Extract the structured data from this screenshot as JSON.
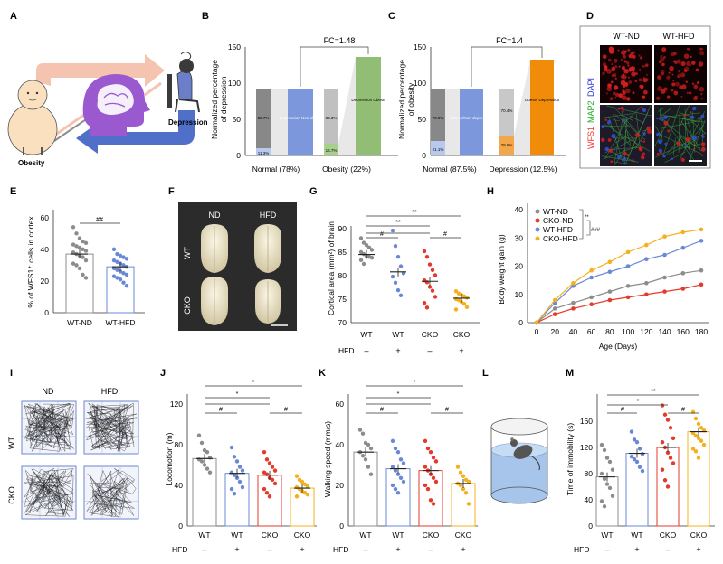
{
  "panels": {
    "A": {
      "letter": "A",
      "obesity": "Obesity",
      "depression": "Depression"
    },
    "B": {
      "letter": "B",
      "fc": "FC=1.48",
      "ylabel1": "Normalized percentage",
      "ylabel2": "of depression",
      "yticks": [
        "0",
        "50",
        "100",
        "150"
      ],
      "x1": "Normal (78%)",
      "x2": "Obesity (22%)",
      "bar1": {
        "top": "88.7%",
        "bottom": "11.3%"
      },
      "bar2": "Depression Non-obese",
      "bar3": {
        "top": "83.3%",
        "bottom": "16.7%"
      },
      "bar4": "Depression Obese"
    },
    "C": {
      "letter": "C",
      "fc": "FC=1.4",
      "ylabel1": "Normalized percentage",
      "ylabel2": "of obesity",
      "yticks": [
        "0",
        "50",
        "100",
        "150"
      ],
      "x1": "Normal (87.5%)",
      "x2": "Depression (12.5%)",
      "bar1": {
        "top": "78.9%",
        "bottom": "21.1%"
      },
      "bar2": "Obese/Non-depression",
      "bar3": {
        "top": "70.4%",
        "bottom": "29.6%"
      },
      "bar4": "Obese/ Depression"
    },
    "D": {
      "letter": "D",
      "c1": "WT-ND",
      "c2": "WT-HFD",
      "side_wfs1": "WFS1",
      "side_map2": "MAP2",
      "side_dapi": "DAPI"
    },
    "E": {
      "letter": "E",
      "ylabel": "% of WFS1⁺ cells in cortex",
      "yticks": [
        "0",
        "20",
        "40",
        "60"
      ],
      "xlabels": [
        "WT-ND",
        "WT-HFD"
      ],
      "sig": "##"
    },
    "F": {
      "letter": "F",
      "nd": "ND",
      "hfd": "HFD",
      "wt": "WT",
      "cko": "CKO"
    },
    "G": {
      "letter": "G",
      "ylabel": "Cortical area (mm²) of brain",
      "yticks": [
        "70",
        "75",
        "80",
        "85",
        "90"
      ],
      "xlabels": [
        "WT",
        "WT",
        "CKO",
        "CKO"
      ],
      "hfd": "HFD",
      "signs": [
        "–",
        "+",
        "–",
        "+"
      ],
      "sig1": "#",
      "sig2": "**",
      "sig3": "**",
      "sig4": "#"
    },
    "H": {
      "letter": "H",
      "ylabel": "Body weight gain (g)",
      "xlabel": "Age (Days)",
      "legend": [
        "WT-ND",
        "CKO-ND",
        "WT-HFD",
        "CKO-HFD"
      ],
      "sig": "**",
      "sig2": "###"
    },
    "I": {
      "letter": "I",
      "nd": "ND",
      "hfd": "HFD",
      "wt": "WT",
      "cko": "CKO"
    },
    "J": {
      "letter": "J",
      "ylabel": "Locomotion (m)",
      "yticks": [
        "0",
        "40",
        "80",
        "120"
      ],
      "xlabels": [
        "WT",
        "WT",
        "CKO",
        "CKO"
      ],
      "hfd": "HFD",
      "signs": [
        "–",
        "+",
        "–",
        "+"
      ],
      "sig1": "#",
      "sig2": "*",
      "sig3": "*",
      "sig4": "#"
    },
    "K": {
      "letter": "K",
      "ylabel": "Walking speed (mm/s)",
      "yticks": [
        "0",
        "20",
        "40",
        "60"
      ],
      "xlabels": [
        "WT",
        "WT",
        "CKO",
        "CKO"
      ],
      "hfd": "HFD",
      "signs": [
        "–",
        "+",
        "–",
        "+"
      ],
      "sig1": "#",
      "sig2": "*",
      "sig3": "*",
      "sig4": "#"
    },
    "L": {
      "letter": "L"
    },
    "M": {
      "letter": "M",
      "ylabel": "Time of immobility (s)",
      "yticks": [
        "0",
        "40",
        "80",
        "120",
        "160"
      ],
      "xlabels": [
        "WT",
        "WT",
        "CKO",
        "CKO"
      ],
      "hfd": "HFD",
      "signs": [
        "–",
        "+",
        "–",
        "+"
      ],
      "sig1": "#",
      "sig2": "*",
      "sig3": "**",
      "sig4": "#"
    }
  },
  "colors": {
    "wtnd": "#8c8c8c",
    "wthfd": "#6a88d6",
    "ckond": "#e43a2b",
    "ckohfd": "#f4b11e",
    "dep_nonobese": "#6f8fd3",
    "dep_obese": "#8dbb6e",
    "obese_dep": "#f08c0a"
  },
  "chart_data": [
    {
      "panel": "E",
      "type": "scatter",
      "categories": [
        "WT-ND",
        "WT-HFD"
      ],
      "means": [
        37,
        29
      ],
      "points": [
        [
          54,
          50,
          47,
          45,
          44,
          43,
          42,
          41,
          40,
          39,
          38,
          37,
          36,
          35,
          33,
          31,
          30,
          28,
          24,
          22
        ],
        [
          40,
          37,
          36,
          35,
          34,
          33,
          32,
          31,
          30,
          29,
          28,
          27,
          26,
          25,
          24,
          23,
          22,
          21,
          19,
          17
        ]
      ],
      "ylim": [
        0,
        65
      ]
    },
    {
      "panel": "G",
      "type": "scatter",
      "categories": [
        "WT",
        "WT",
        "CKO",
        "CKO"
      ],
      "means": [
        84.5,
        80.8,
        78.8,
        75.2
      ],
      "points": [
        [
          88,
          87,
          86.5,
          86,
          85.5,
          85,
          84.6,
          84.2,
          84,
          83.8,
          83.3,
          82.5
        ],
        [
          89.6,
          86.3,
          84,
          82,
          80.5,
          79.8,
          78.5,
          76.9,
          75.8
        ],
        [
          85.2,
          84,
          82.4,
          81.2,
          80.1,
          79,
          78.6,
          77.6,
          76.8,
          75.5,
          74.2,
          73.2
        ],
        [
          76.7,
          76.2,
          75.9,
          75.6,
          75.3,
          75,
          74.8,
          74.4,
          74,
          73.3,
          72.8
        ]
      ],
      "ylim": [
        70,
        90
      ]
    },
    {
      "panel": "H",
      "type": "line",
      "x": [
        0,
        20,
        40,
        60,
        80,
        100,
        120,
        140,
        160,
        180
      ],
      "series": [
        {
          "name": "WT-ND",
          "values": [
            0,
            5,
            7,
            9,
            11,
            13,
            14,
            16,
            17.5,
            18.5
          ]
        },
        {
          "name": "CKO-ND",
          "values": [
            0,
            3,
            5,
            6.5,
            8,
            9,
            10,
            11,
            12,
            13.5
          ]
        },
        {
          "name": "WT-HFD",
          "values": [
            0,
            7,
            13,
            16,
            18,
            20,
            22.5,
            24,
            26.5,
            29
          ]
        },
        {
          "name": "CKO-HFD",
          "values": [
            0,
            8,
            14,
            18.5,
            21.5,
            25,
            27.5,
            30.5,
            32,
            33
          ]
        }
      ],
      "ylim": [
        0,
        40
      ]
    },
    {
      "panel": "J",
      "type": "bar",
      "categories": [
        "WT",
        "WT",
        "CKO",
        "CKO"
      ],
      "values": [
        73,
        57,
        55,
        41
      ],
      "points": [
        [
          98,
          90,
          82,
          80,
          74,
          72,
          70,
          66,
          62,
          58
        ],
        [
          85,
          75,
          70,
          64,
          60,
          58,
          55,
          52,
          48,
          42,
          40,
          35
        ],
        [
          80,
          72,
          68,
          64,
          60,
          58,
          56,
          52,
          50,
          46,
          40,
          36,
          32
        ],
        [
          54,
          50,
          48,
          45,
          43,
          42,
          40,
          38,
          36,
          34,
          32
        ]
      ],
      "ylim": [
        0,
        130
      ]
    },
    {
      "panel": "K",
      "type": "bar",
      "categories": [
        "WT",
        "WT",
        "CKO",
        "CKO"
      ],
      "values": [
        40,
        31,
        30,
        23
      ],
      "points": [
        [
          52,
          50,
          45,
          44,
          42,
          40,
          38,
          36,
          32,
          28
        ],
        [
          46,
          42,
          40,
          36,
          34,
          32,
          30,
          28,
          26,
          24,
          22,
          20,
          18
        ],
        [
          46,
          42,
          40,
          37,
          35,
          32,
          30,
          28,
          26,
          24,
          22,
          20,
          14,
          12
        ],
        [
          32,
          29,
          27,
          25,
          24,
          23,
          22,
          20,
          18,
          12
        ]
      ],
      "ylim": [
        0,
        65
      ]
    },
    {
      "panel": "M",
      "type": "bar",
      "categories": [
        "WT",
        "WT",
        "CKO",
        "CKO"
      ],
      "values": [
        75,
        111,
        120,
        144
      ],
      "points": [
        [
          124,
          116,
          104,
          98,
          86,
          80,
          72,
          64,
          58,
          46,
          38,
          30
        ],
        [
          144,
          132,
          128,
          118,
          110,
          106,
          102,
          98,
          90,
          84
        ],
        [
          184,
          170,
          162,
          150,
          134,
          128,
          120,
          112,
          104,
          96,
          86,
          70,
          60
        ],
        [
          174,
          164,
          156,
          150,
          146,
          142,
          138,
          134,
          130,
          124,
          118,
          114,
          104
        ]
      ],
      "ylim": [
        0,
        200
      ]
    }
  ]
}
